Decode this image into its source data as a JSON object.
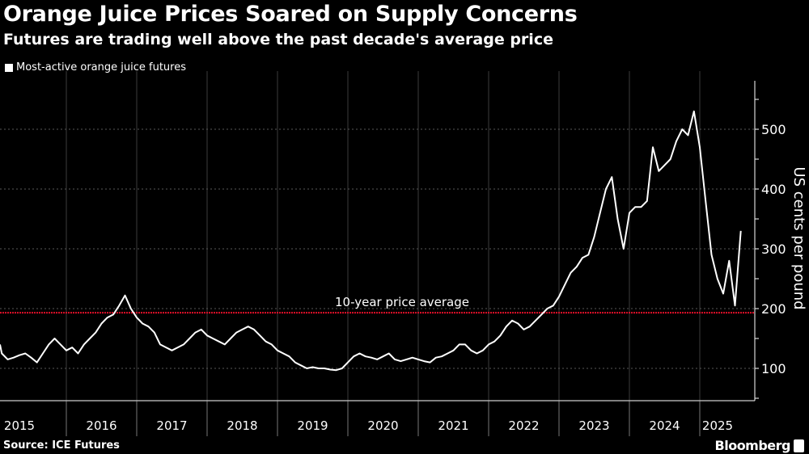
{
  "chart_data": {
    "type": "line",
    "title": "Orange Juice Prices Soared on Supply Concerns",
    "subtitle": "Futures are trading well above the past decade's average price",
    "ylabel": "US cents per pound",
    "xlabel": "",
    "ylim": [
      46,
      581
    ],
    "yticks": [
      100,
      200,
      300,
      400,
      500
    ],
    "xticks": [
      "2015",
      "2016",
      "2017",
      "2018",
      "2019",
      "2020",
      "2021",
      "2022",
      "2023",
      "2024",
      "2025"
    ],
    "grid": true,
    "legend": {
      "placement": "top-left",
      "entries": [
        "Most-active orange juice futures"
      ]
    },
    "annotation": {
      "label": "10-year price average",
      "value": 193,
      "color": "#e0102a"
    },
    "series": [
      {
        "name": "Most-active orange juice futures",
        "color": "#ffffff",
        "x_start": 2015.0,
        "step": "monthly",
        "values": [
          140,
          125,
          115,
          118,
          122,
          125,
          118,
          110,
          125,
          140,
          150,
          140,
          130,
          135,
          125,
          140,
          150,
          160,
          175,
          185,
          190,
          205,
          222,
          200,
          185,
          175,
          170,
          160,
          140,
          135,
          130,
          135,
          140,
          150,
          160,
          165,
          155,
          150,
          145,
          140,
          150,
          160,
          165,
          170,
          165,
          155,
          145,
          140,
          130,
          125,
          120,
          110,
          105,
          100,
          102,
          100,
          100,
          98,
          97,
          100,
          110,
          120,
          125,
          120,
          118,
          115,
          120,
          125,
          115,
          112,
          115,
          118,
          115,
          112,
          110,
          118,
          120,
          125,
          130,
          140,
          140,
          130,
          125,
          130,
          140,
          145,
          155,
          170,
          180,
          175,
          165,
          170,
          180,
          190,
          200,
          205,
          220,
          240,
          260,
          270,
          285,
          290,
          320,
          360,
          400,
          420,
          350,
          300,
          360,
          370,
          370,
          380,
          470,
          430,
          440,
          450,
          480,
          500,
          490,
          530,
          470,
          380,
          290,
          250,
          225,
          280,
          205,
          330
        ]
      }
    ]
  },
  "source": "Source: ICE Futures",
  "brand": "Bloomberg"
}
